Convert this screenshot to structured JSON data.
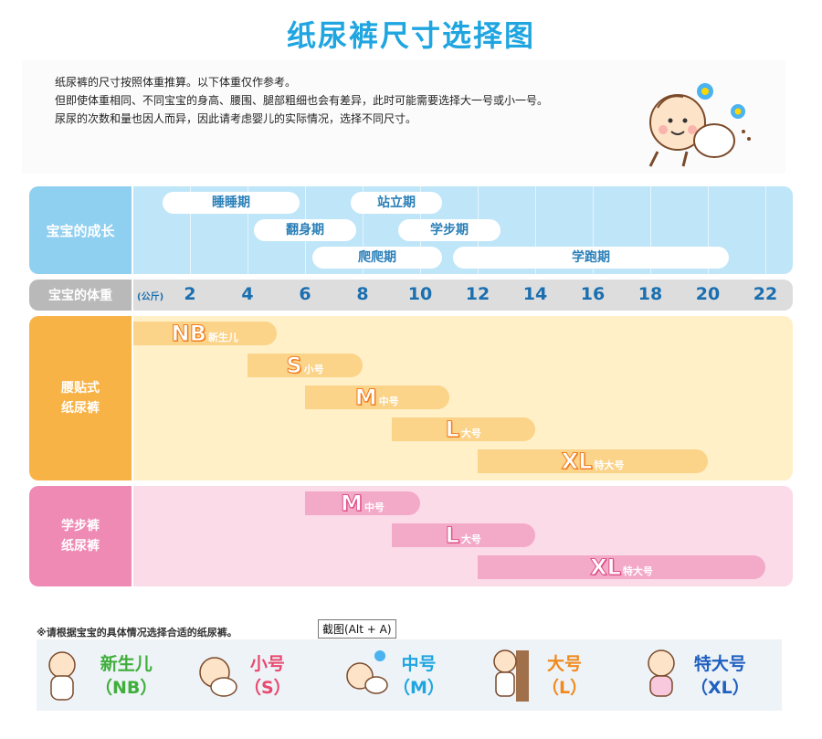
{
  "title": "纸尿裤尺寸选择图",
  "intro": {
    "line1": "纸尿裤的尺寸按照体重推算。以下体重仅作参考。",
    "line2": "但即使体重相同、不同宝宝的身高、腰围、腿部粗细也会有差异，此时可能需要选择大一号或小一号。",
    "line3": "尿尿的次数和量也因人而异，因此请考虑婴儿的实际情况，选择不同尺寸。"
  },
  "growth": {
    "label": "宝宝的成长",
    "stages": [
      "睡睡期",
      "站立期",
      "翻身期",
      "学步期",
      "爬爬期",
      "学跑期"
    ]
  },
  "weight": {
    "label": "宝宝的体重",
    "unit": "(公斤)",
    "ticks": [
      "2",
      "4",
      "6",
      "8",
      "10",
      "12",
      "14",
      "16",
      "18",
      "20",
      "22"
    ]
  },
  "tape": {
    "label_line1": "腰贴式",
    "label_line2": "纸尿裤",
    "sizes": [
      {
        "code": "NB",
        "cn": "新生儿",
        "from_kg": 0,
        "to_kg": 5
      },
      {
        "code": "S",
        "cn": "小号",
        "from_kg": 4,
        "to_kg": 8
      },
      {
        "code": "M",
        "cn": "中号",
        "from_kg": 6,
        "to_kg": 11
      },
      {
        "code": "L",
        "cn": "大号",
        "from_kg": 9,
        "to_kg": 14
      },
      {
        "code": "XL",
        "cn": "特大号",
        "from_kg": 12,
        "to_kg": 20
      }
    ]
  },
  "pants": {
    "label_line1": "学步裤",
    "label_line2": "纸尿裤",
    "sizes": [
      {
        "code": "M",
        "cn": "中号",
        "from_kg": 6,
        "to_kg": 10
      },
      {
        "code": "L",
        "cn": "大号",
        "from_kg": 9,
        "to_kg": 14
      },
      {
        "code": "XL",
        "cn": "特大号",
        "from_kg": 12,
        "to_kg": 22
      }
    ]
  },
  "note": "※请根据宝宝的具体情况选择合适的纸尿裤。",
  "tooltip": "截图(Alt + A)",
  "size_guide": [
    {
      "name": "新生儿",
      "code": "（NB）",
      "color": "#3fae3a"
    },
    {
      "name": "小号",
      "code": "（S）",
      "color": "#e84a6f"
    },
    {
      "name": "中号",
      "code": "（M）",
      "color": "#1fa5e0"
    },
    {
      "name": "大号",
      "code": "（L）",
      "color": "#f08a1c"
    },
    {
      "name": "特大号",
      "code": "（XL）",
      "color": "#1f5fc0"
    }
  ]
}
